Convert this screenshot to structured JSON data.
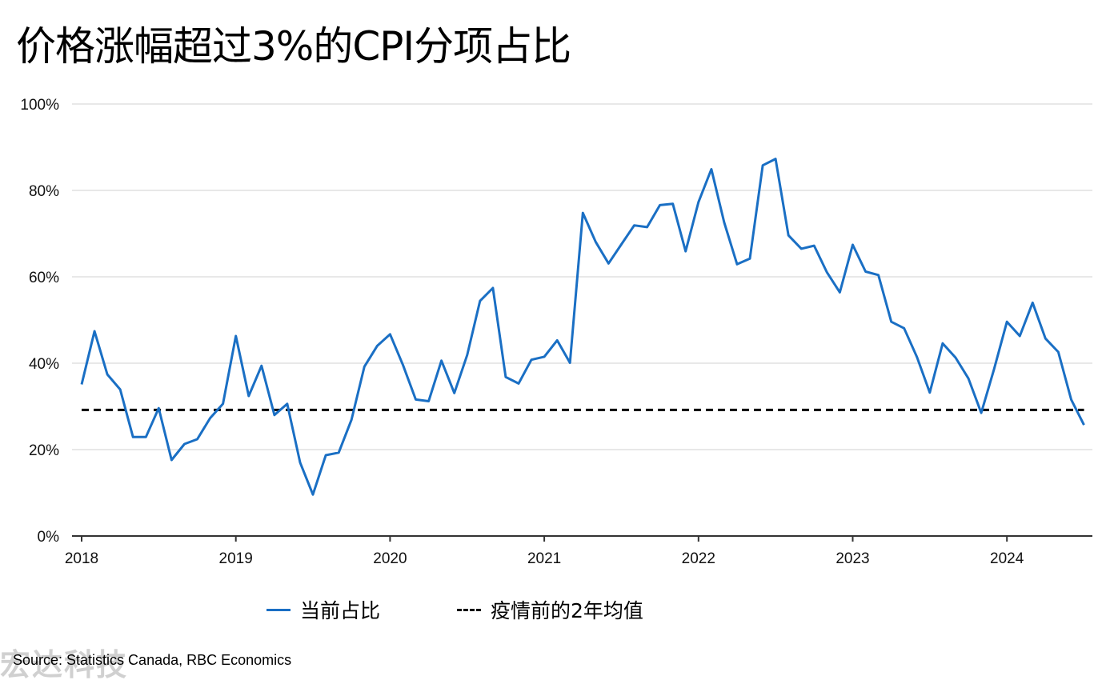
{
  "title": "价格涨幅超过3%的CPI分项占比",
  "source": "Source: Statistics Canada, RBC Economics",
  "watermark": "宏达科技",
  "colors": {
    "series_current": "#1a6fc4",
    "series_baseline": "#000000",
    "grid": "#e0e0e0",
    "axis": "#333333"
  },
  "chart_data": {
    "type": "line",
    "title": "价格涨幅超过3%的CPI分项占比",
    "xlabel": "",
    "ylabel": "",
    "ylim": [
      0,
      100
    ],
    "y_ticks": [
      0,
      20,
      40,
      60,
      80,
      100
    ],
    "y_tick_labels": [
      "0%",
      "20%",
      "40%",
      "60%",
      "80%",
      "100%"
    ],
    "x_ticks": [
      2018,
      2019,
      2020,
      2021,
      2022,
      2023,
      2024
    ],
    "x_tick_labels": [
      "2018",
      "2019",
      "2020",
      "2021",
      "2022",
      "2023",
      "2024"
    ],
    "xlim": [
      2018,
      2024.5
    ],
    "grid": "horizontal",
    "legend_position": "bottom-center",
    "series": [
      {
        "name": "当前占比",
        "style": "solid",
        "x_start": "2018-01",
        "frequency": "monthly",
        "values": [
          35.1,
          47.4,
          37.4,
          33.9,
          22.9,
          22.9,
          29.6,
          17.6,
          21.3,
          22.4,
          27.3,
          30.6,
          46.3,
          32.4,
          39.4,
          28.0,
          30.6,
          17.0,
          9.6,
          18.7,
          19.3,
          26.9,
          39.2,
          44.0,
          46.7,
          39.6,
          31.6,
          31.2,
          40.6,
          33.1,
          41.9,
          54.4,
          57.4,
          36.8,
          35.3,
          40.8,
          41.5,
          45.3,
          40.1,
          74.8,
          68.1,
          63.1,
          67.5,
          71.9,
          71.5,
          76.6,
          76.9,
          65.9,
          77.3,
          84.9,
          72.6,
          62.9,
          64.2,
          85.8,
          87.3,
          69.6,
          66.5,
          67.2,
          61.0,
          56.4,
          67.4,
          61.2,
          60.4,
          49.6,
          48.1,
          41.4,
          33.2,
          44.6,
          41.3,
          36.5,
          28.5,
          38.6,
          49.6,
          46.3,
          54.0,
          45.7,
          42.6,
          31.6,
          25.7
        ]
      },
      {
        "name": "疫情前的2年均值",
        "style": "dashed",
        "constant": 29.2
      }
    ]
  }
}
